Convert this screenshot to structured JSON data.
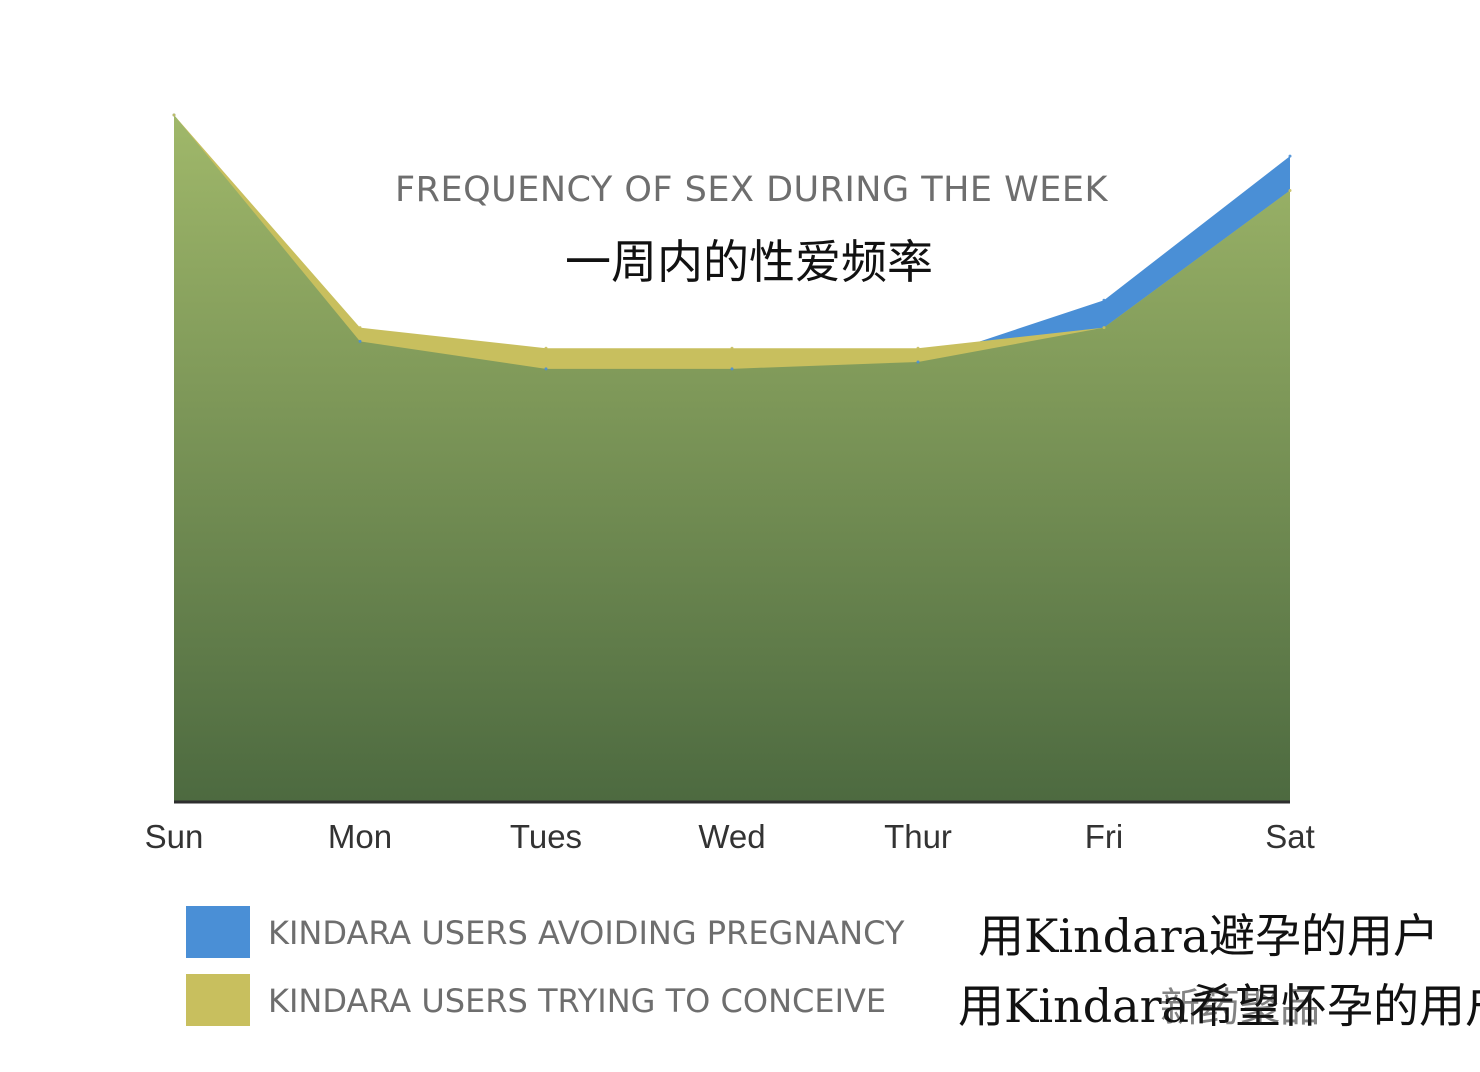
{
  "chart_data": {
    "type": "area",
    "title": "FREQUENCY OF SEX DURING THE WEEK",
    "subtitle": "一周内的性爱频率",
    "categories": [
      "Sun",
      "Mon",
      "Tues",
      "Wed",
      "Thur",
      "Fri",
      "Sat"
    ],
    "ylim": [
      0,
      100
    ],
    "grid": false,
    "legend_placement": "bottom",
    "series": [
      {
        "name": "KINDARA USERS AVOIDING PREGNANCY",
        "translation": "用Kindara避孕的用户",
        "color": "#4a8fd6",
        "values": [
          100,
          67,
          63,
          63,
          64,
          73,
          94
        ]
      },
      {
        "name": "KINDARA USERS TRYING TO CONCEIVE",
        "translation": "用Kindara希望怀孕的用户",
        "color": "#c8bf5e",
        "values": [
          100,
          69,
          66,
          66,
          66,
          69,
          89
        ]
      }
    ],
    "base_fill": {
      "top": "#a0b86a",
      "bottom": "#4d6a40"
    }
  },
  "watermark": "新药聚品"
}
